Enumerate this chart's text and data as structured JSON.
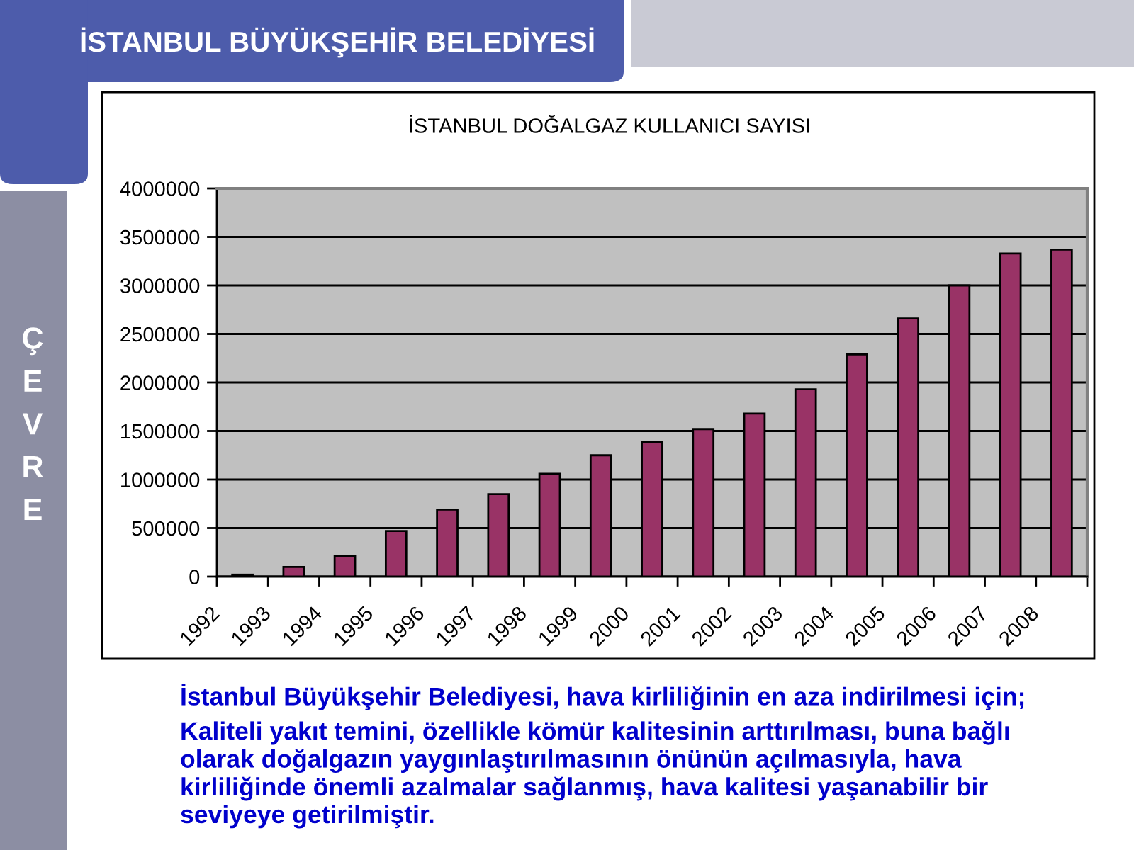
{
  "chart_data": {
    "type": "bar",
    "title": "İSTANBUL DOĞALGAZ KULLANICI SAYISI",
    "categories": [
      "1992",
      "1993",
      "1994",
      "1995",
      "1996",
      "1997",
      "1998",
      "1999",
      "2000",
      "2001",
      "2002",
      "2003",
      "2004",
      "2005",
      "2006",
      "2007",
      "2008"
    ],
    "values": [
      20000,
      100000,
      210000,
      470000,
      690000,
      850000,
      1060000,
      1250000,
      1390000,
      1520000,
      1680000,
      1930000,
      2290000,
      2660000,
      3000000,
      3330000,
      3370000
    ],
    "color": "#993366",
    "ylim": [
      0,
      4000000
    ],
    "yticks": [
      0,
      500000,
      1000000,
      1500000,
      2000000,
      2500000,
      3000000,
      3500000,
      4000000
    ],
    "grid": "y",
    "annotations": [
      "İSTANBUL BÜYÜKŞEHİR BELEDİYESİ",
      "ÇEVRE",
      "İstanbul Büyükşehir Belediyesi, hava kirliliğinin en aza indirilmesi için;",
      "Kaliteli yakıt temini, özellikle kömür kalitesinin arttırılması, buna bağlı\nolarak doğalgazın yaygınlaştırılmasının önünün açılmasıyla, hava\nkirliliğinde önemli azalmalar sağlanmış, hava kalitesi yaşanabilir bir\nseviyeye getirilmiştir."
    ]
  }
}
